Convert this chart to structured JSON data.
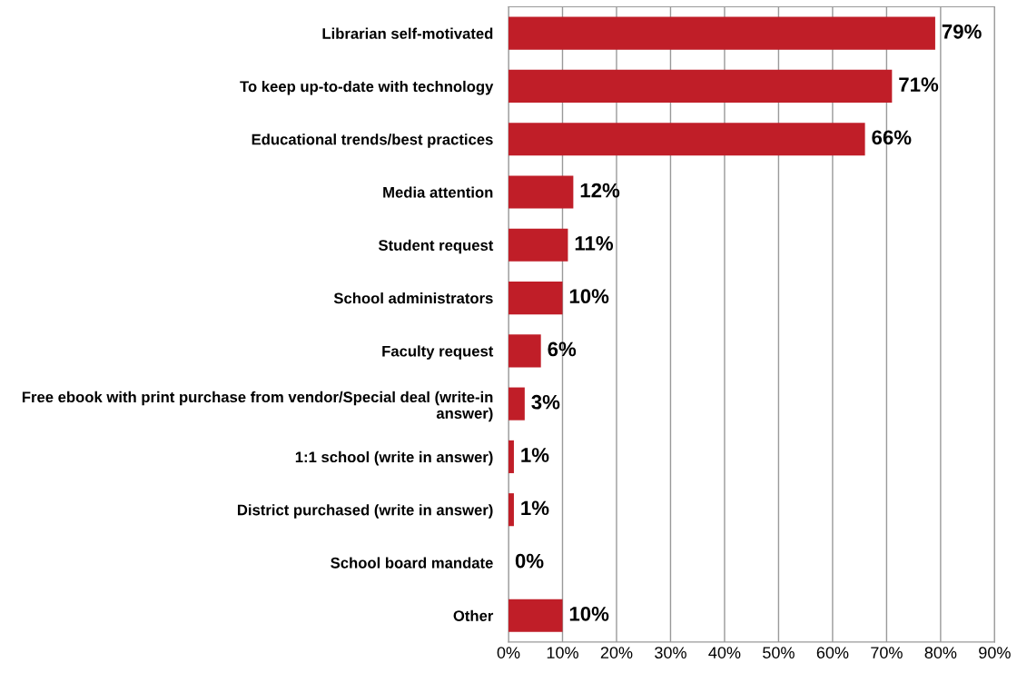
{
  "chart_data": {
    "type": "bar",
    "orientation": "horizontal",
    "categories": [
      "Librarian self-motivated",
      "To keep up-to-date with technology",
      "Educational trends/best practices",
      "Media attention",
      "Student request",
      "School administrators",
      "Faculty request",
      "Free ebook with print purchase from vendor/Special deal (write-in answer)",
      "1:1 school (write in answer)",
      "District purchased (write in answer)",
      "School board mandate",
      "Other"
    ],
    "values": [
      79,
      71,
      66,
      12,
      11,
      10,
      6,
      3,
      1,
      1,
      0,
      10
    ],
    "value_labels": [
      "79%",
      "71%",
      "66%",
      "12%",
      "11%",
      "10%",
      "6%",
      "3%",
      "1%",
      "1%",
      "0%",
      "10%"
    ],
    "color": "#c01e28",
    "xlim": [
      0,
      90
    ],
    "xticks": [
      {
        "value": 0,
        "label": "0%"
      },
      {
        "value": 10,
        "label": "10%"
      },
      {
        "value": 20,
        "label": "20%"
      },
      {
        "value": 30,
        "label": "30%"
      },
      {
        "value": 40,
        "label": "40%"
      },
      {
        "value": 50,
        "label": "50%"
      },
      {
        "value": 60,
        "label": "60%"
      },
      {
        "value": 70,
        "label": "70%"
      },
      {
        "value": 80,
        "label": "80%"
      },
      {
        "value": 90,
        "label": "90%"
      }
    ],
    "grid": "x"
  }
}
